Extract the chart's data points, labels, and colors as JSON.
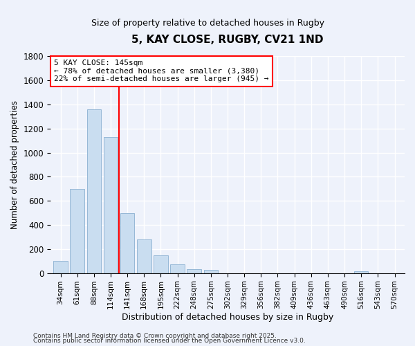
{
  "title": "5, KAY CLOSE, RUGBY, CV21 1ND",
  "subtitle": "Size of property relative to detached houses in Rugby",
  "xlabel": "Distribution of detached houses by size in Rugby",
  "ylabel": "Number of detached properties",
  "bar_labels": [
    "34sqm",
    "61sqm",
    "88sqm",
    "114sqm",
    "141sqm",
    "168sqm",
    "195sqm",
    "222sqm",
    "248sqm",
    "275sqm",
    "302sqm",
    "329sqm",
    "356sqm",
    "382sqm",
    "409sqm",
    "436sqm",
    "463sqm",
    "490sqm",
    "516sqm",
    "543sqm",
    "570sqm"
  ],
  "bar_values": [
    100,
    700,
    1360,
    1130,
    500,
    280,
    150,
    70,
    30,
    25,
    0,
    0,
    0,
    0,
    0,
    0,
    0,
    0,
    15,
    0,
    0
  ],
  "bar_color": "#c9ddf0",
  "bar_edge_color": "#8ab0d0",
  "vline_color": "red",
  "vline_index": 3.5,
  "ylim": [
    0,
    1800
  ],
  "yticks": [
    0,
    200,
    400,
    600,
    800,
    1000,
    1200,
    1400,
    1600,
    1800
  ],
  "annotation_box_line1": "5 KAY CLOSE: 145sqm",
  "annotation_box_line2": "← 78% of detached houses are smaller (3,380)",
  "annotation_box_line3": "22% of semi-detached houses are larger (945) →",
  "footer_line1": "Contains HM Land Registry data © Crown copyright and database right 2025.",
  "footer_line2": "Contains public sector information licensed under the Open Government Licence v3.0.",
  "background_color": "#eef2fb",
  "grid_color": "#ffffff",
  "title_fontsize": 11,
  "subtitle_fontsize": 9
}
